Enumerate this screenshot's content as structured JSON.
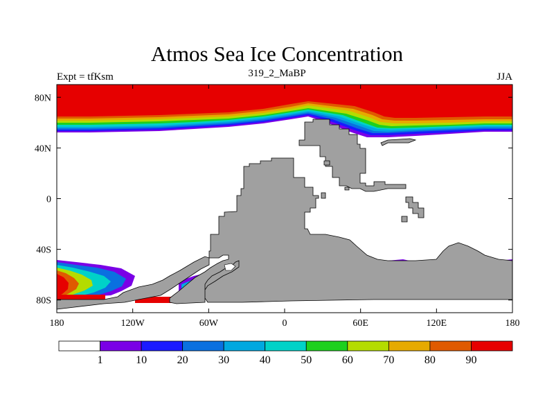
{
  "title": "Atmos Sea Ice Concentration",
  "subtitle_left": "Expt = tfKsm",
  "subtitle_center": "319_2_MaBP",
  "subtitle_right": "JJA",
  "map": {
    "type": "map",
    "variable": "sea ice concentration",
    "units": "%",
    "projection": "cylindrical equidistant",
    "lon_range": [
      -180,
      180
    ],
    "lat_range": [
      -90,
      90
    ],
    "land_color": "#a0a0a0",
    "x_ticks": [
      {
        "lon": -180,
        "label": "180"
      },
      {
        "lon": -120,
        "label": "120W"
      },
      {
        "lon": -60,
        "label": "60W"
      },
      {
        "lon": 0,
        "label": "0"
      },
      {
        "lon": 60,
        "label": "60E"
      },
      {
        "lon": 120,
        "label": "120E"
      },
      {
        "lon": 180,
        "label": "180"
      }
    ],
    "y_ticks": [
      {
        "lat": 80,
        "label": "80N"
      },
      {
        "lat": 40,
        "label": "40N"
      },
      {
        "lat": 0,
        "label": "0"
      },
      {
        "lat": -40,
        "label": "40S"
      },
      {
        "lat": -80,
        "label": "80S"
      }
    ]
  },
  "colorbar": {
    "colors": [
      "#ffffff",
      "#7a00e6",
      "#1a1aff",
      "#0a70e0",
      "#00a8e0",
      "#00d2c8",
      "#1ed01e",
      "#b4dc00",
      "#e6aa00",
      "#e05a00",
      "#e60000"
    ],
    "labels": [
      "1",
      "10",
      "20",
      "30",
      "40",
      "50",
      "60",
      "70",
      "80",
      "90"
    ]
  }
}
